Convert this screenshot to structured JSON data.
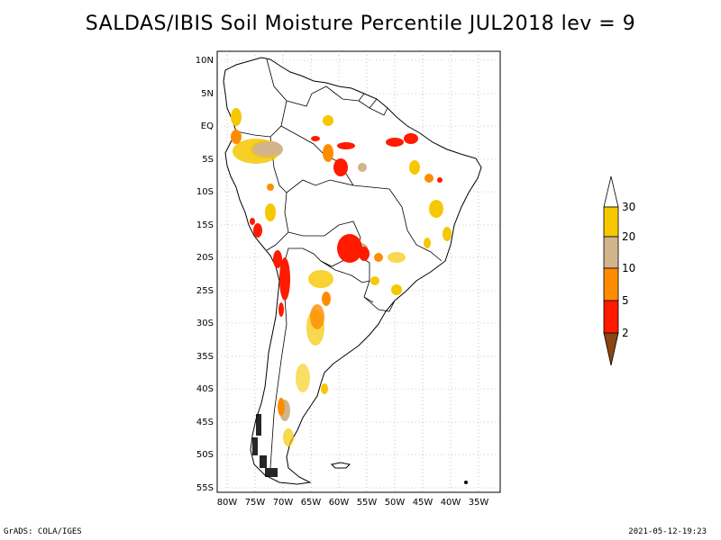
{
  "title": "SALDAS/IBIS Soil Moisture Percentile JUL2018 lev = 9",
  "map": {
    "region": "South America",
    "lat_range": [
      -56,
      12
    ],
    "lon_range": [
      -82,
      -31
    ],
    "lat_ticks": [
      "10N",
      "5N",
      "EQ",
      "5S",
      "10S",
      "15S",
      "20S",
      "25S",
      "30S",
      "35S",
      "40S",
      "45S",
      "50S",
      "55S"
    ],
    "lon_ticks": [
      "80W",
      "75W",
      "70W",
      "65W",
      "60W",
      "55W",
      "50W",
      "45W",
      "40W",
      "35W"
    ],
    "colorbar": {
      "labels": [
        "30",
        "20",
        "10",
        "5",
        "2"
      ],
      "colors": {
        "above_30": "#ffffff",
        "20_30": "#f5c800",
        "10_20": "#d2b48c",
        "5_10": "#ff8c00",
        "2_5": "#ff1a00",
        "below_2": "#8b4513"
      }
    }
  },
  "footer": {
    "left": "GrADS: COLA/IGES",
    "right": "2021-05-12-19:23"
  }
}
